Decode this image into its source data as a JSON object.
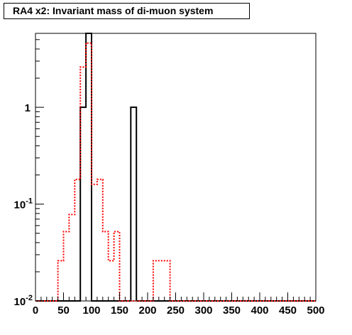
{
  "chart_data": {
    "type": "histogram",
    "title": "RA4 x2: Invariant mass of di-muon system",
    "xlabel": "",
    "ylabel": "",
    "xlim": [
      0,
      500
    ],
    "ylim": [
      0.01,
      5.8
    ],
    "yscale": "log",
    "grid": false,
    "legend": "none",
    "x_ticks": [
      "0",
      "50",
      "100",
      "150",
      "200",
      "250",
      "300",
      "350",
      "400",
      "450",
      "500"
    ],
    "y_ticks": [
      {
        "value": 0.01,
        "base": "10",
        "exp": "-2"
      },
      {
        "value": 0.1,
        "base": "10",
        "exp": "-1"
      },
      {
        "value": 1,
        "label": "1"
      }
    ],
    "series": [
      {
        "color": "#000000",
        "linestyle": "solid",
        "bins": [
          {
            "x0": 80,
            "x1": 90,
            "y": 1.0
          },
          {
            "x0": 90,
            "x1": 100,
            "y": 5.8
          },
          {
            "x0": 170,
            "x1": 180,
            "y": 1.0
          }
        ]
      },
      {
        "color": "#ff0000",
        "linestyle": "dotted",
        "bins": [
          {
            "x0": 40,
            "x1": 50,
            "y": 0.026
          },
          {
            "x0": 50,
            "x1": 60,
            "y": 0.052
          },
          {
            "x0": 60,
            "x1": 70,
            "y": 0.078
          },
          {
            "x0": 70,
            "x1": 80,
            "y": 0.18
          },
          {
            "x0": 80,
            "x1": 90,
            "y": 2.6
          },
          {
            "x0": 90,
            "x1": 100,
            "y": 4.6
          },
          {
            "x0": 100,
            "x1": 110,
            "y": 0.16
          },
          {
            "x0": 110,
            "x1": 120,
            "y": 0.18
          },
          {
            "x0": 120,
            "x1": 130,
            "y": 0.052
          },
          {
            "x0": 130,
            "x1": 140,
            "y": 0.026
          },
          {
            "x0": 140,
            "x1": 150,
            "y": 0.052
          },
          {
            "x0": 210,
            "x1": 220,
            "y": 0.026
          },
          {
            "x0": 220,
            "x1": 230,
            "y": 0.026
          },
          {
            "x0": 230,
            "x1": 240,
            "y": 0.026
          }
        ]
      }
    ]
  }
}
